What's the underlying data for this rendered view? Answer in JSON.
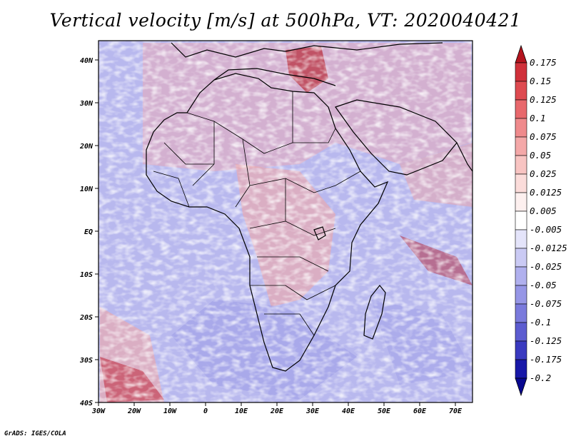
{
  "title": "Vertical velocity [m/s] at 500hPa, VT: 2020040421",
  "credit": "GrADS: IGES/COLA",
  "axes": {
    "lon_labels": [
      "30W",
      "20W",
      "10W",
      "0",
      "10E",
      "20E",
      "30E",
      "40E",
      "50E",
      "60E",
      "70E"
    ],
    "lat_labels": [
      "40N",
      "30N",
      "20N",
      "10N",
      "EQ",
      "10S",
      "20S",
      "30S",
      "40S"
    ]
  },
  "legend": {
    "levels": [
      "0.175",
      "0.15",
      "0.125",
      "0.1",
      "0.075",
      "0.05",
      "0.025",
      "0.0125",
      "0.005",
      "-0.005",
      "-0.0125",
      "-0.025",
      "-0.05",
      "-0.075",
      "-0.1",
      "-0.125",
      "-0.175",
      "-0.2"
    ],
    "colors": [
      "#b4141e",
      "#d0303a",
      "#de4a50",
      "#e8686c",
      "#ef8a8c",
      "#f4a8a8",
      "#f8c4c2",
      "#fbdcda",
      "#fdf0ef",
      "#ffffff",
      "#e4e4fa",
      "#cacaf4",
      "#b0b0ee",
      "#9696e6",
      "#7a7adc",
      "#5c5cd0",
      "#3a3ac0",
      "#1818a8",
      "#080890"
    ]
  },
  "colors": {
    "ocean_blue": "#b4b6ee",
    "land_red": "#f2b0b0",
    "coastline": "#000000"
  }
}
